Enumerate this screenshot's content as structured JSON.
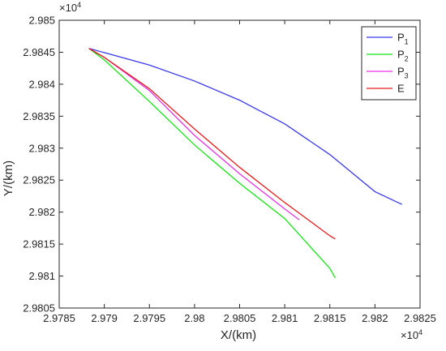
{
  "chart_data": {
    "type": "line",
    "xlabel": "X/(km)",
    "ylabel": "Y/(km)",
    "x_multiplier": {
      "base": "×10",
      "exponent": "4"
    },
    "y_multiplier": {
      "base": "×10",
      "exponent": "4"
    },
    "xlim": [
      2.9785,
      2.9825
    ],
    "ylim": [
      2.9805,
      2.985
    ],
    "x_ticks": [
      2.9785,
      2.979,
      2.9795,
      2.98,
      2.9805,
      2.981,
      2.9815,
      2.982,
      2.9825
    ],
    "x_tick_labels": [
      "2.9785",
      "2.979",
      "2.9795",
      "2.98",
      "2.9805",
      "2.981",
      "2.9815",
      "2.982",
      "2.9825"
    ],
    "y_ticks": [
      2.9805,
      2.981,
      2.9815,
      2.982,
      2.9825,
      2.983,
      2.9835,
      2.984,
      2.9845,
      2.985
    ],
    "y_tick_labels": [
      "2.9805",
      "2.981",
      "2.9815",
      "2.982",
      "2.9825",
      "2.983",
      "2.9835",
      "2.984",
      "2.9845",
      "2.985"
    ],
    "grid": false,
    "legend_position": "top-right",
    "series": [
      {
        "name": "P",
        "subscript": "1",
        "color": "#3a3aee",
        "x": [
          2.97883,
          2.9795,
          2.98,
          2.9805,
          2.981,
          2.9815,
          2.982,
          2.9823
        ],
        "y": [
          2.98456,
          2.9843,
          2.98405,
          2.98375,
          2.98338,
          2.9829,
          2.98232,
          2.98212
        ]
      },
      {
        "name": "P",
        "subscript": "2",
        "color": "#14e614",
        "x": [
          2.97883,
          2.979,
          2.9795,
          2.98,
          2.9805,
          2.981,
          2.9815,
          2.98156
        ],
        "y": [
          2.98456,
          2.98438,
          2.98373,
          2.98305,
          2.98245,
          2.9819,
          2.98112,
          2.98097
        ]
      },
      {
        "name": "P",
        "subscript": "3",
        "color": "#e632e6",
        "x": [
          2.97883,
          2.979,
          2.9795,
          2.98,
          2.9805,
          2.981,
          2.98116
        ],
        "y": [
          2.98456,
          2.98442,
          2.9839,
          2.9832,
          2.9826,
          2.98205,
          2.98188
        ]
      },
      {
        "name": "E",
        "subscript": "",
        "color": "#e61e1e",
        "x": [
          2.97883,
          2.979,
          2.9795,
          2.98,
          2.9805,
          2.981,
          2.9815,
          2.98156
        ],
        "y": [
          2.98456,
          2.98442,
          2.98393,
          2.9833,
          2.9827,
          2.98215,
          2.98163,
          2.98158
        ]
      }
    ]
  }
}
